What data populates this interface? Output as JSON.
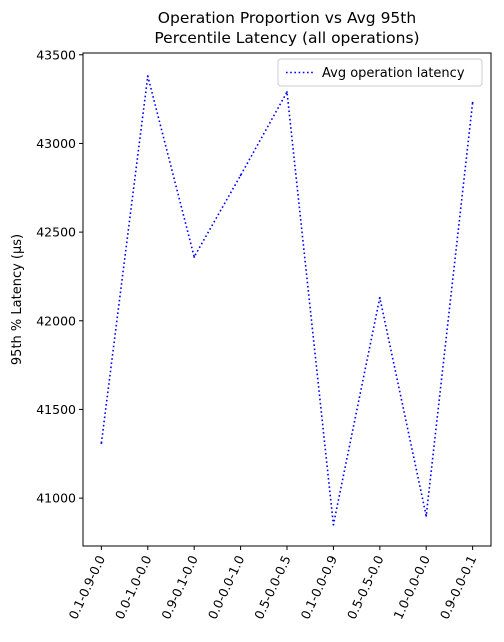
{
  "chart_data": {
    "type": "line",
    "title_lines": [
      "Operation Proportion vs Avg 95th",
      "Percentile Latency (all operations)"
    ],
    "xlabel": "",
    "ylabel": "95th % Latency (µs)",
    "categories": [
      "0.1-0.9-0.0",
      "0.0-1.0-0.0",
      "0.9-0.1-0.0",
      "0.0-0.0-1.0",
      "0.5-0.0-0.5",
      "0.1-0.0-0.9",
      "0.5-0.5-0.0",
      "1.0-0.0-0.0",
      "0.9-0.0-0.1"
    ],
    "series": [
      {
        "name": "Avg operation latency",
        "color": "#0000ff",
        "line_style": "dotted",
        "values": [
          41310,
          43380,
          42360,
          42820,
          43290,
          40850,
          42130,
          40900,
          43230
        ]
      }
    ],
    "ylim": [
      40730,
      43510
    ],
    "yticks": [
      41000,
      41500,
      42000,
      42500,
      43000,
      43500
    ],
    "grid": false,
    "legend_position": "top-right"
  }
}
